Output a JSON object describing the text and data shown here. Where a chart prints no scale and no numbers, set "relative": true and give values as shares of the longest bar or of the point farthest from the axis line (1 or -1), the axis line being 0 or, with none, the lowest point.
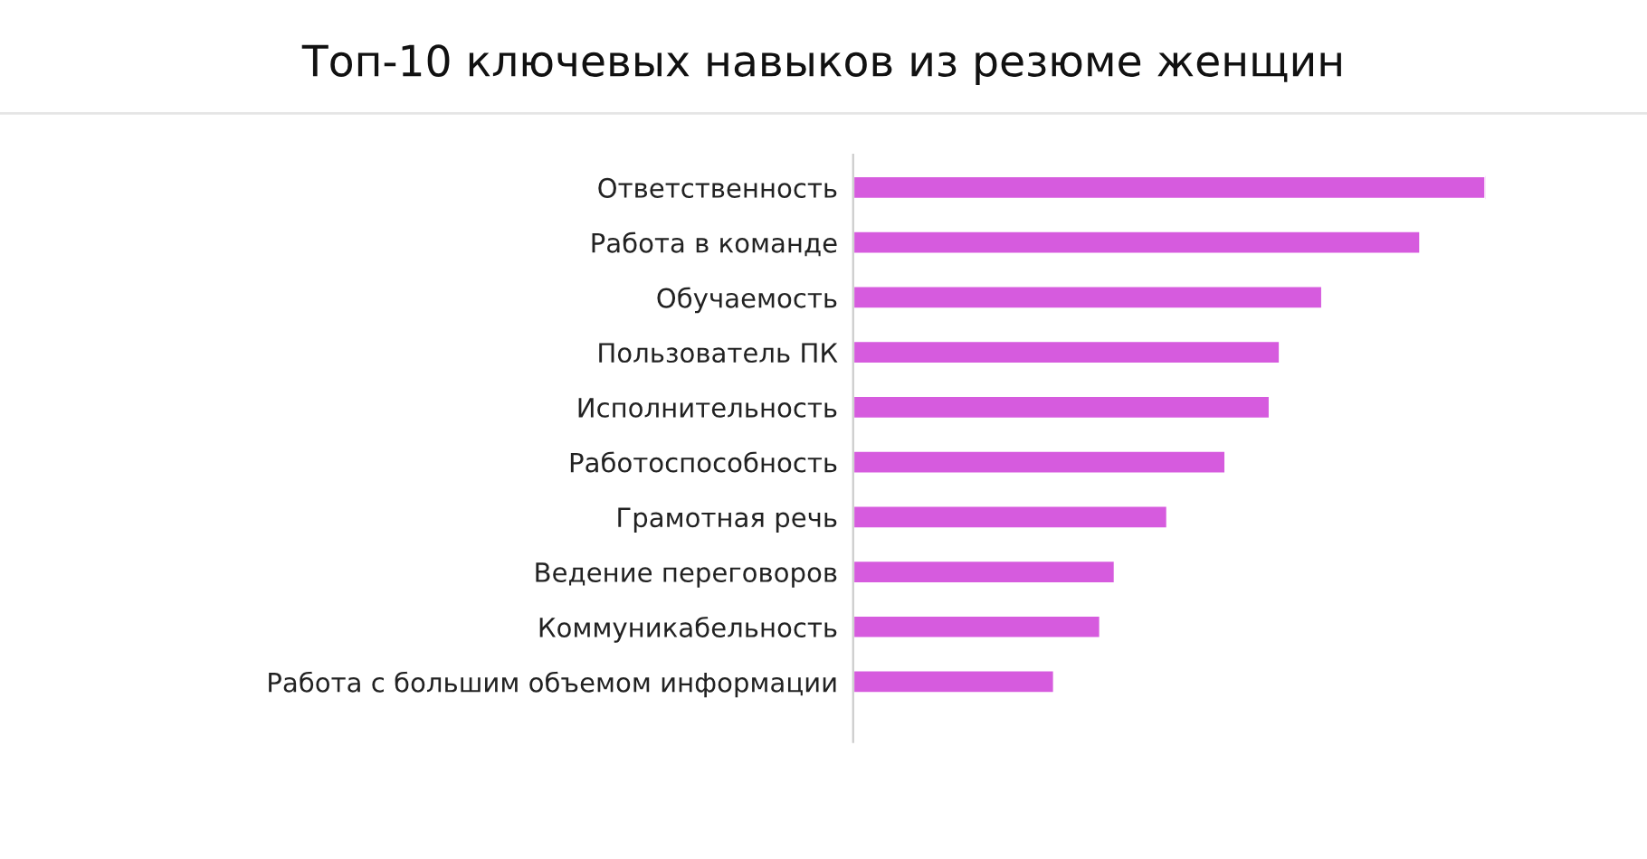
{
  "chart_data": {
    "type": "bar",
    "orientation": "horizontal",
    "relative": true,
    "title": "Топ-10 ключевых навыков из резюме женщин",
    "categories": [
      "Ответственность",
      "Работа в команде",
      "Обучаемость",
      "Пользователь ПК",
      "Исполнительность",
      "Работоспособность",
      "Грамотная речь",
      "Ведение переговоров",
      "Коммуникабельность",
      "Работа с большим объемом информации"
    ],
    "values": [
      1,
      0.897,
      0.742,
      0.675,
      0.659,
      0.589,
      0.497,
      0.414,
      0.391,
      0.318
    ],
    "color": "#d65bde",
    "grid": false,
    "legend": false
  }
}
